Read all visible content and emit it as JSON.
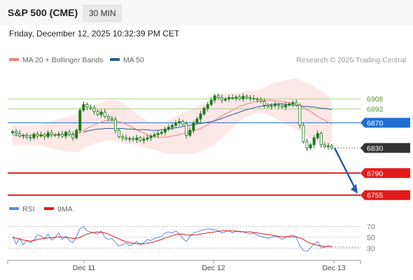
{
  "header": {
    "title": "S&P 500 (CME)",
    "interval": "30 MIN",
    "datetime": "Friday, December 12, 2025 10:32:39 PM CET"
  },
  "legend": {
    "ma20": "MA 20 + Bollinger Bands",
    "ma50": "MA 50",
    "credit": "Research © 2025 Trading Central",
    "rsi": "RSI",
    "rsi_ma": "9MA"
  },
  "colors": {
    "ma20": "#f08080",
    "band_fill": "#fde4e4",
    "ma50": "#2c5a9a",
    "candle": "#1e7a1e",
    "green_line": "#a8d08d",
    "blue_level": "#1f6fd0",
    "red_level": "#e31b1b",
    "current": "#333333",
    "rsi": "#5b8be0",
    "rsi_ma": "#e31b1b"
  },
  "chart_data": [
    {
      "type": "candlestick",
      "x_tick_labels": [
        "Dec 11",
        "Dec 12",
        "Dec 13"
      ],
      "levels": [
        {
          "value": 6908,
          "label": "6908",
          "style": "green-line"
        },
        {
          "value": 6892,
          "label": "6892",
          "style": "green-line"
        },
        {
          "value": 6870,
          "label": "6870",
          "style": "blue-tag"
        },
        {
          "value": 6830,
          "label": "6830",
          "style": "current-price"
        },
        {
          "value": 6790,
          "label": "6790",
          "style": "red-tag"
        },
        {
          "value": 6755,
          "label": "6755",
          "style": "red-tag"
        }
      ],
      "ylim": [
        6748,
        6945
      ],
      "close": [
        6856,
        6853,
        6849,
        6850,
        6847,
        6846,
        6852,
        6849,
        6851,
        6848,
        6854,
        6851,
        6850,
        6852,
        6849,
        6855,
        6851,
        6846,
        6858,
        6890,
        6899,
        6895,
        6893,
        6888,
        6883,
        6887,
        6880,
        6877,
        6875,
        6858,
        6848,
        6846,
        6844,
        6845,
        6843,
        6846,
        6842,
        6844,
        6846,
        6849,
        6851,
        6853,
        6855,
        6860,
        6863,
        6866,
        6870,
        6872,
        6868,
        6850,
        6858,
        6870,
        6876,
        6884,
        6893,
        6899,
        6906,
        6913,
        6910,
        6906,
        6908,
        6910,
        6909,
        6911,
        6908,
        6912,
        6910,
        6909,
        6908,
        6907,
        6904,
        6898,
        6896,
        6897,
        6899,
        6897,
        6895,
        6898,
        6900,
        6902,
        6898,
        6866,
        6840,
        6830,
        6835,
        6846,
        6853,
        6835,
        6832,
        6833,
        6830
      ],
      "ma20_values": [
        6850,
        6850,
        6850,
        6850,
        6850,
        6850,
        6850,
        6850,
        6850,
        6850,
        6850,
        6851,
        6851,
        6851,
        6851,
        6851,
        6852,
        6852,
        6853,
        6855,
        6858,
        6861,
        6864,
        6867,
        6869,
        6871,
        6873,
        6874,
        6874,
        6873,
        6872,
        6870,
        6868,
        6865,
        6862,
        6859,
        6856,
        6854,
        6851,
        6849,
        6848,
        6847,
        6847,
        6847,
        6848,
        6849,
        6850,
        6851,
        6853,
        6854,
        6855,
        6857,
        6859,
        6861,
        6864,
        6867,
        6870,
        6874,
        6878,
        6881,
        6884,
        6887,
        6890,
        6893,
        6896,
        6898,
        6900,
        6901,
        6903,
        6904,
        6905,
        6905,
        6906,
        6906,
        6905,
        6904,
        6904,
        6903,
        6902,
        6901,
        6900,
        6897,
        6894,
        6891,
        6888,
        6884,
        6880,
        6877,
        6874,
        6871,
        6868
      ],
      "ma50_values": [
        null,
        null,
        null,
        null,
        null,
        null,
        null,
        null,
        null,
        null,
        null,
        null,
        null,
        null,
        null,
        null,
        null,
        null,
        null,
        null,
        6855,
        6857,
        6858,
        6859,
        6860,
        6860,
        6861,
        6861,
        6861,
        6861,
        6861,
        6861,
        6860,
        6860,
        6860,
        6859,
        6859,
        6859,
        6859,
        6858,
        6858,
        6858,
        6859,
        6859,
        6860,
        6861,
        6862,
        6863,
        6864,
        6865,
        6866,
        6867,
        6868,
        6869,
        6870,
        6871,
        6872,
        6873,
        6875,
        6877,
        6879,
        6881,
        6883,
        6885,
        6887,
        6889,
        6891,
        6892,
        6894,
        6895,
        6896,
        6897,
        6898,
        6899,
        6900,
        6900,
        6900,
        6899,
        6899,
        6898,
        6898,
        6897,
        6896,
        6896,
        6895,
        6895,
        6894,
        6893,
        6893,
        6892,
        6891
      ]
    },
    {
      "type": "line",
      "name": "RSI",
      "yticks": [
        30,
        50,
        70
      ],
      "ylim": [
        15,
        85
      ],
      "rsi_values": [
        52,
        38,
        48,
        36,
        44,
        40,
        45,
        55,
        52,
        48,
        56,
        45,
        50,
        58,
        46,
        52,
        44,
        40,
        52,
        66,
        70,
        62,
        60,
        58,
        56,
        62,
        50,
        46,
        48,
        40,
        34,
        36,
        40,
        34,
        38,
        42,
        36,
        40,
        46,
        44,
        48,
        50,
        52,
        58,
        60,
        58,
        62,
        56,
        48,
        42,
        52,
        58,
        60,
        62,
        64,
        66,
        65,
        64,
        62,
        58,
        60,
        62,
        58,
        62,
        60,
        60,
        58,
        56,
        58,
        54,
        52,
        50,
        48,
        50,
        52,
        50,
        46,
        50,
        52,
        54,
        50,
        34,
        26,
        24,
        30,
        38,
        42,
        30,
        32,
        34,
        32
      ],
      "ma9_values": [
        50,
        48,
        47,
        45,
        44,
        43,
        44,
        46,
        47,
        48,
        49,
        49,
        50,
        51,
        50,
        50,
        49,
        48,
        48,
        50,
        53,
        56,
        58,
        59,
        60,
        59,
        58,
        56,
        53,
        50,
        47,
        44,
        42,
        40,
        39,
        38,
        38,
        38,
        39,
        40,
        42,
        44,
        46,
        49,
        51,
        53,
        55,
        56,
        56,
        54,
        54,
        54,
        55,
        56,
        57,
        58,
        59,
        60,
        61,
        62,
        62,
        62,
        62,
        61,
        61,
        60,
        60,
        60,
        59,
        58,
        57,
        56,
        55,
        54,
        53,
        52,
        51,
        51,
        51,
        51,
        51,
        49,
        46,
        42,
        39,
        37,
        35,
        34,
        33,
        33,
        33
      ]
    }
  ]
}
